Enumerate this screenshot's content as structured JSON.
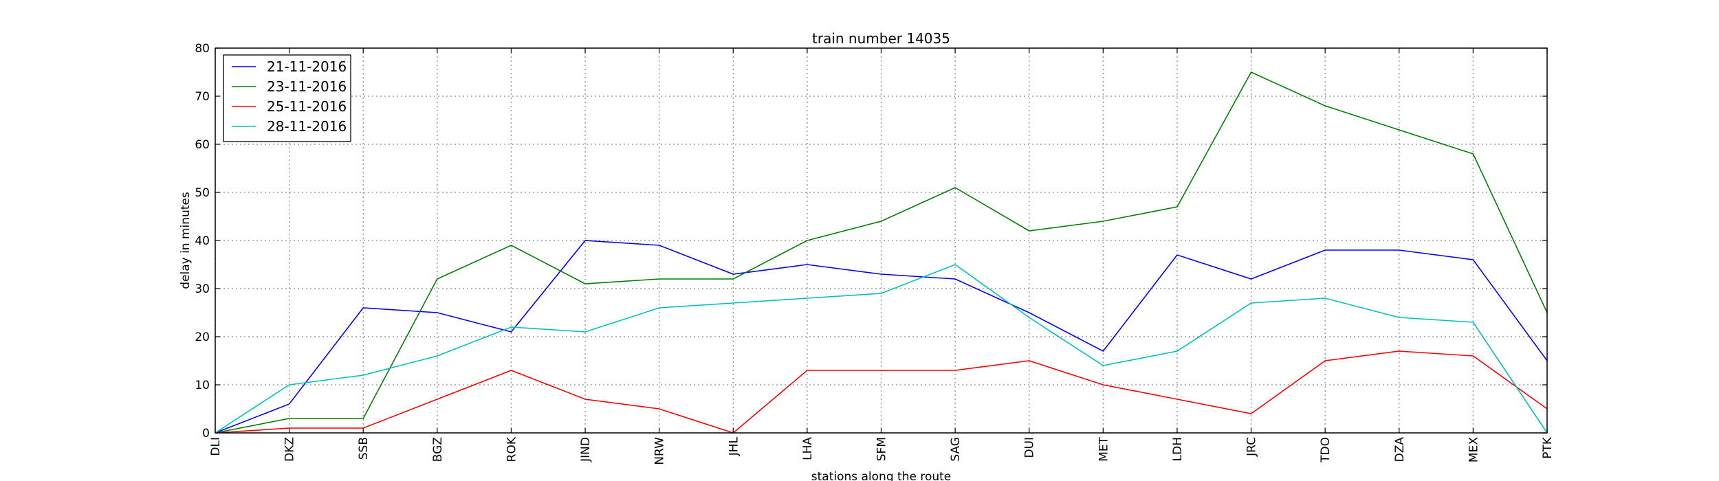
{
  "chart_data": {
    "type": "line",
    "title": "train number 14035",
    "xlabel": "stations along the route",
    "ylabel": "delay in minutes",
    "categories": [
      "DLI",
      "DKZ",
      "SSB",
      "BGZ",
      "ROK",
      "JIND",
      "NRW",
      "JHL",
      "LHA",
      "SFM",
      "SAG",
      "DUI",
      "MET",
      "LDH",
      "JRC",
      "TDO",
      "DZA",
      "MEX",
      "PTK"
    ],
    "ylim": [
      0,
      80
    ],
    "yticks": [
      0,
      10,
      20,
      30,
      40,
      50,
      60,
      70,
      80
    ],
    "grid": true,
    "legend_position": "top-left",
    "series": [
      {
        "name": "21-11-2016",
        "color": "#0000ff",
        "values": [
          0,
          6,
          26,
          25,
          21,
          40,
          39,
          33,
          35,
          33,
          32,
          25,
          17,
          37,
          32,
          38,
          38,
          36,
          15
        ]
      },
      {
        "name": "23-11-2016",
        "color": "#008000",
        "values": [
          0,
          3,
          3,
          32,
          39,
          31,
          32,
          32,
          40,
          44,
          51,
          42,
          44,
          47,
          75,
          68,
          63,
          58,
          25
        ]
      },
      {
        "name": "25-11-2016",
        "color": "#ff0000",
        "values": [
          0,
          1,
          1,
          7,
          13,
          7,
          5,
          0,
          13,
          13,
          13,
          15,
          10,
          7,
          4,
          15,
          17,
          16,
          5
        ]
      },
      {
        "name": "28-11-2016",
        "color": "#00bfbf",
        "values": [
          0,
          10,
          12,
          16,
          22,
          21,
          26,
          27,
          28,
          29,
          35,
          24,
          14,
          17,
          27,
          28,
          24,
          23,
          0
        ]
      }
    ]
  }
}
